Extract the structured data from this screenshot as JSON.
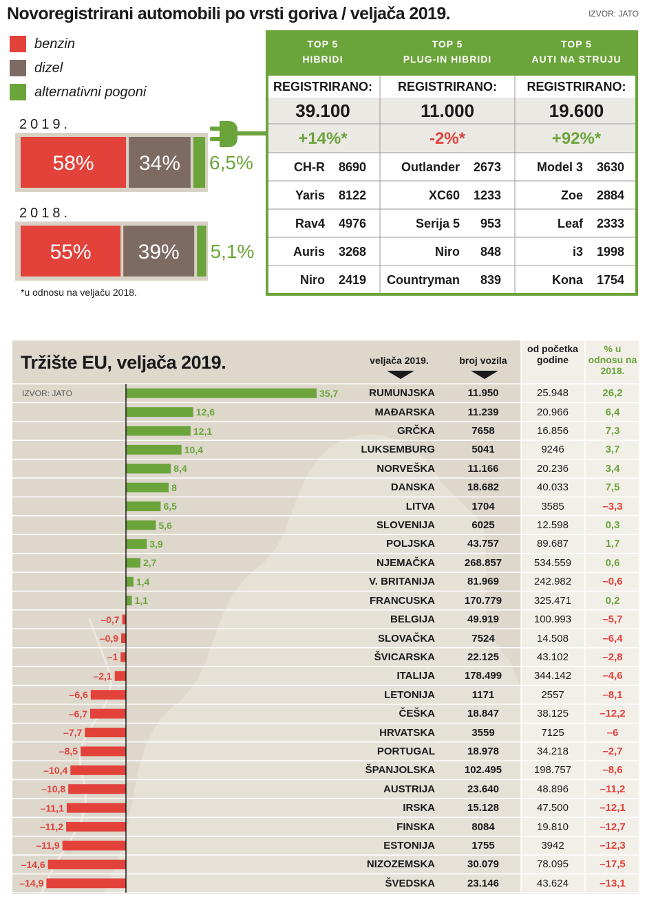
{
  "title": "Novoregistrirani automobili po vrsti goriva / veljača 2019.",
  "source": "IZVOR: JATO",
  "footnote": "*u odnosu na veljaču 2018.",
  "chart_data": [
    {
      "type": "stacked-bar",
      "categories": [
        "2019.",
        "2018."
      ],
      "series": [
        {
          "name": "benzin",
          "color": "#e2423a",
          "values": [
            58,
            55
          ],
          "value_labels": [
            "58%",
            "55%"
          ]
        },
        {
          "name": "dizel",
          "color": "#7d6b63",
          "values": [
            34,
            39
          ],
          "value_labels": [
            "34%",
            "39%"
          ]
        },
        {
          "name": "alternativni pogoni",
          "color": "#6ba43a",
          "values": [
            6.5,
            5.1
          ],
          "value_labels": [
            "6,5%",
            "5,1%"
          ]
        }
      ]
    },
    {
      "type": "bar",
      "title": "Tržište EU, veljača 2019.",
      "source": "IZVOR: JATO",
      "color": "#6ba43a",
      "negative_color": "#e2423a",
      "categories": [
        "RUMUNJSKA",
        "MAĐARSKA",
        "GRČKA",
        "LUKSEMBURG",
        "NORVEŠKA",
        "DANSKA",
        "LITVA",
        "SLOVENIJA",
        "POLJSKA",
        "NJEMAČKA",
        "V. BRITANIJA",
        "FRANCUSKA",
        "BELGIJA",
        "SLOVAČKA",
        "ŠVICARSKA",
        "ITALIJA",
        "LETONIJA",
        "ČEŠKA",
        "HRVATSKA",
        "PORTUGAL",
        "ŠPANJOLSKA",
        "AUSTRIJA",
        "IRSKA",
        "FINSKA",
        "ESTONIJA",
        "NIZOZEMSKA",
        "ŠVEDSKA"
      ],
      "values": [
        35.7,
        12.6,
        12.1,
        10.4,
        8.4,
        8,
        6.5,
        5.6,
        3.9,
        2.7,
        1.4,
        1.1,
        -0.7,
        -0.9,
        -1,
        -2.1,
        -6.6,
        -6.7,
        -7.7,
        -8.5,
        -10.4,
        -10.8,
        -11.1,
        -11.2,
        -11.9,
        -14.6,
        -14.9
      ],
      "value_labels": [
        "35,7",
        "12,6",
        "12,1",
        "10,4",
        "8,4",
        "8",
        "6,5",
        "5,6",
        "3,9",
        "2,7",
        "1,4",
        "1,1",
        "–0,7",
        "–0,9",
        "–1",
        "–2,1",
        "–6,6",
        "–6,7",
        "–7,7",
        "–8,5",
        "–10,4",
        "–10,8",
        "–11,1",
        "–11,2",
        "–11,9",
        "–14,6",
        "–14,9"
      ]
    }
  ],
  "eu_table": {
    "headers": [
      "veljača 2019.",
      "broj vozila",
      "od početka godine",
      "% u odnosu na 2018."
    ],
    "rows": [
      [
        "11.950",
        "25.948",
        "26,2"
      ],
      [
        "11.239",
        "20.966",
        "6,4"
      ],
      [
        "7658",
        "16.856",
        "7,3"
      ],
      [
        "5041",
        "9246",
        "3,7"
      ],
      [
        "11.166",
        "20.236",
        "3,4"
      ],
      [
        "18.682",
        "40.033",
        "7,5"
      ],
      [
        "1704",
        "3585",
        "–3,3"
      ],
      [
        "6025",
        "12.598",
        "0,3"
      ],
      [
        "43.757",
        "89.687",
        "1,7"
      ],
      [
        "268.857",
        "534.559",
        "0,6"
      ],
      [
        "81.969",
        "242.982",
        "–0,6"
      ],
      [
        "170.779",
        "325.471",
        "0,2"
      ],
      [
        "49.919",
        "100.993",
        "–5,7"
      ],
      [
        "7524",
        "14.508",
        "–6,4"
      ],
      [
        "22.125",
        "43.102",
        "–2,8"
      ],
      [
        "178.499",
        "344.142",
        "–4,6"
      ],
      [
        "1171",
        "2557",
        "–8,1"
      ],
      [
        "18.847",
        "38.125",
        "–12,2"
      ],
      [
        "3559",
        "7125",
        "–6"
      ],
      [
        "18.978",
        "34.218",
        "–2,7"
      ],
      [
        "102.495",
        "198.757",
        "–8,6"
      ],
      [
        "23.640",
        "48.896",
        "–11,2"
      ],
      [
        "15.128",
        "47.500",
        "–12,1"
      ],
      [
        "8084",
        "19.810",
        "–12,7"
      ],
      [
        "1755",
        "3942",
        "–12,3"
      ],
      [
        "30.079",
        "78.095",
        "–17,5"
      ],
      [
        "23.146",
        "43.624",
        "–13,1"
      ]
    ]
  },
  "top5": {
    "columns": [
      {
        "heading": [
          "TOP 5",
          "HIBRIDI"
        ],
        "label": "REGISTRIRANO:",
        "total": "39.100",
        "change": "+14%*",
        "rows": [
          [
            "CH-R",
            "8690"
          ],
          [
            "Yaris",
            "8122"
          ],
          [
            "Rav4",
            "4976"
          ],
          [
            "Auris",
            "3268"
          ],
          [
            "Niro",
            "2419"
          ]
        ]
      },
      {
        "heading": [
          "TOP 5",
          "PLUG-IN HIBRIDI"
        ],
        "label": "REGISTRIRANO:",
        "total": "11.000",
        "change": "-2%*",
        "rows": [
          [
            "Outlander",
            "2673"
          ],
          [
            "XC60",
            "1233"
          ],
          [
            "Serija 5",
            "953"
          ],
          [
            "Niro",
            "848"
          ],
          [
            "Countryman",
            "839"
          ]
        ]
      },
      {
        "heading": [
          "TOP 5",
          "AUTI NA STRUJU"
        ],
        "label": "REGISTRIRANO:",
        "total": "19.600",
        "change": "+92%*",
        "rows": [
          [
            "Model 3",
            "3630"
          ],
          [
            "Zoe",
            "2884"
          ],
          [
            "Leaf",
            "2333"
          ],
          [
            "i3",
            "1998"
          ],
          [
            "Kona",
            "1754"
          ]
        ]
      }
    ]
  }
}
